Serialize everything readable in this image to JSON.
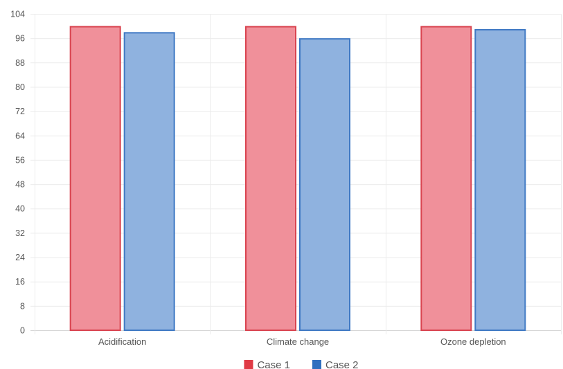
{
  "chart_data": {
    "type": "bar",
    "categories": [
      "Acidification",
      "Climate change",
      "Ozone depletion"
    ],
    "series": [
      {
        "name": "Case 1",
        "values": [
          100,
          100,
          100
        ],
        "color": "#f0909a",
        "border_color": "#d9434f",
        "legend_color": "#e03a45"
      },
      {
        "name": "Case 2",
        "values": [
          98,
          96,
          99
        ],
        "color": "#8fb2df",
        "border_color": "#3f79c4",
        "legend_color": "#2f6fbf"
      }
    ],
    "y_ticks": [
      0,
      8,
      16,
      24,
      32,
      40,
      48,
      56,
      64,
      72,
      80,
      88,
      96,
      104
    ],
    "ylim": [
      0,
      104
    ],
    "grid": true,
    "legend_position": "bottom",
    "title": "",
    "xlabel": "",
    "ylabel": ""
  }
}
